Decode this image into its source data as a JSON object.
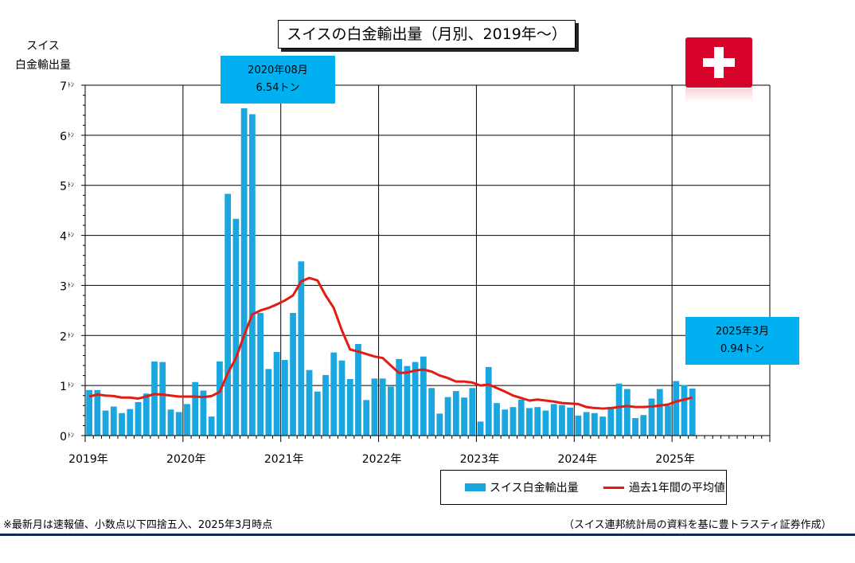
{
  "title": "スイスの白金輸出量（月別、2019年～）",
  "ylabel_lines": [
    "スイス",
    "白金輸出量"
  ],
  "callouts": [
    {
      "line1": "2020年08月",
      "line2": "6.54トン"
    },
    {
      "line1": "2025年3月",
      "line2": "0.94トン"
    }
  ],
  "legend": {
    "bar_label": "スイス白金輸出量",
    "line_label": "過去1年間の平均値"
  },
  "footnote": "※最新月は速報値、小数点以下四捨五入、2025年3月時点",
  "source": "（スイス連邦統計局の資料を基に豊トラスティ証券作成）",
  "colors": {
    "bar": "#1aa7e0",
    "line": "#e41b13",
    "callout": "#00b0f0",
    "flag": "#d7022a"
  },
  "chart_data": {
    "type": "bar",
    "title": "スイスの白金輸出量（月別、2019年～）",
    "ylabel": "スイス白金輸出量",
    "yunit": "トン",
    "ylim": [
      0,
      7
    ],
    "yticks": [
      0,
      1,
      2,
      3,
      4,
      5,
      6,
      7
    ],
    "ytick_labels": [
      "0",
      "1",
      "2",
      "3",
      "4",
      "5",
      "6",
      "7"
    ],
    "ytick_unit": "ﾄﾝ",
    "xlim_months": 84,
    "x_start": "2019-01",
    "xtick_labels": [
      "2019年",
      "2020年",
      "2021年",
      "2022年",
      "2023年",
      "2024年",
      "2025年"
    ],
    "grid": true,
    "legend_position": "bottom-right",
    "series": [
      {
        "name": "スイス白金輸出量",
        "type": "bar",
        "values": [
          0.91,
          0.91,
          0.5,
          0.58,
          0.45,
          0.53,
          0.67,
          0.84,
          1.48,
          1.47,
          0.52,
          0.47,
          0.63,
          1.07,
          0.9,
          0.38,
          1.48,
          4.83,
          4.33,
          6.54,
          6.42,
          2.45,
          1.33,
          1.67,
          1.51,
          2.45,
          3.48,
          1.31,
          0.88,
          1.21,
          1.66,
          1.5,
          1.13,
          1.83,
          0.71,
          1.14,
          1.14,
          0.98,
          1.53,
          1.39,
          1.47,
          1.58,
          0.95,
          0.44,
          0.77,
          0.89,
          0.76,
          0.95,
          0.28,
          1.37,
          0.65,
          0.52,
          0.57,
          0.72,
          0.55,
          0.57,
          0.5,
          0.63,
          0.61,
          0.56,
          0.4,
          0.47,
          0.45,
          0.38,
          0.57,
          1.04,
          0.93,
          0.35,
          0.41,
          0.74,
          0.93,
          0.6,
          1.09,
          1.01,
          0.94
        ]
      },
      {
        "name": "過去1年間の平均値",
        "type": "line",
        "values": [
          0.78,
          0.82,
          0.8,
          0.79,
          0.76,
          0.76,
          0.74,
          0.78,
          0.83,
          0.82,
          0.8,
          0.78,
          0.78,
          0.78,
          0.77,
          0.79,
          0.87,
          1.25,
          1.55,
          2.0,
          2.42,
          2.5,
          2.55,
          2.62,
          2.7,
          2.8,
          3.08,
          3.15,
          3.1,
          2.8,
          2.55,
          2.1,
          1.72,
          1.68,
          1.63,
          1.58,
          1.55,
          1.4,
          1.25,
          1.26,
          1.3,
          1.32,
          1.28,
          1.2,
          1.15,
          1.08,
          1.08,
          1.06,
          1.0,
          1.02,
          0.95,
          0.88,
          0.8,
          0.75,
          0.7,
          0.72,
          0.7,
          0.68,
          0.65,
          0.64,
          0.63,
          0.57,
          0.55,
          0.54,
          0.55,
          0.57,
          0.59,
          0.57,
          0.57,
          0.58,
          0.6,
          0.62,
          0.68,
          0.72,
          0.76
        ]
      }
    ]
  }
}
